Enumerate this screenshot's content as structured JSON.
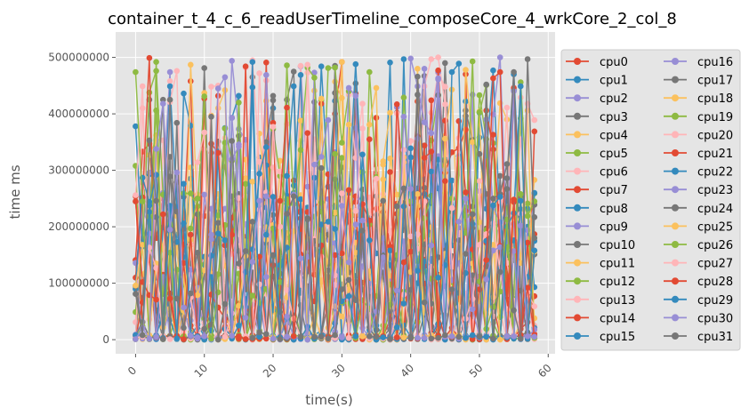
{
  "chart_data": {
    "type": "line",
    "title": "container_t_4_c_6_readUserTimeline_composeCore_4_wrkCore_2_col_8",
    "xlabel": "time(s)",
    "ylabel": "time ms",
    "xlim": [
      -2.9,
      61.0
    ],
    "ylim": [
      -25000000,
      545000000
    ],
    "xticks": [
      0,
      10,
      20,
      30,
      40,
      50,
      60
    ],
    "yticks": [
      0,
      100000000,
      200000000,
      300000000,
      400000000,
      500000000
    ],
    "xtick_labels": [
      "0",
      "10",
      "20",
      "30",
      "40",
      "50",
      "60"
    ],
    "ytick_labels": [
      "0",
      "100000000",
      "200000000",
      "300000000",
      "400000000",
      "500000000"
    ],
    "grid": true,
    "legend_position": "right-outside",
    "legend_columns": 2,
    "x_range": [
      0,
      58
    ],
    "colors": [
      "#E24A33",
      "#348ABD",
      "#988ED5",
      "#777777",
      "#FBC15E",
      "#8EBA42",
      "#FFB5B8"
    ],
    "series": [
      {
        "name": "cpu0",
        "color": "#E24A33"
      },
      {
        "name": "cpu1",
        "color": "#348ABD"
      },
      {
        "name": "cpu2",
        "color": "#988ED5"
      },
      {
        "name": "cpu3",
        "color": "#777777"
      },
      {
        "name": "cpu4",
        "color": "#FBC15E"
      },
      {
        "name": "cpu5",
        "color": "#8EBA42"
      },
      {
        "name": "cpu6",
        "color": "#FFB5B8"
      },
      {
        "name": "cpu7",
        "color": "#E24A33"
      },
      {
        "name": "cpu8",
        "color": "#348ABD"
      },
      {
        "name": "cpu9",
        "color": "#988ED5"
      },
      {
        "name": "cpu10",
        "color": "#777777"
      },
      {
        "name": "cpu11",
        "color": "#FBC15E"
      },
      {
        "name": "cpu12",
        "color": "#8EBA42"
      },
      {
        "name": "cpu13",
        "color": "#FFB5B8"
      },
      {
        "name": "cpu14",
        "color": "#E24A33"
      },
      {
        "name": "cpu15",
        "color": "#348ABD"
      },
      {
        "name": "cpu16",
        "color": "#988ED5"
      },
      {
        "name": "cpu17",
        "color": "#777777"
      },
      {
        "name": "cpu18",
        "color": "#FBC15E"
      },
      {
        "name": "cpu19",
        "color": "#8EBA42"
      },
      {
        "name": "cpu20",
        "color": "#FFB5B8"
      },
      {
        "name": "cpu21",
        "color": "#E24A33"
      },
      {
        "name": "cpu22",
        "color": "#348ABD"
      },
      {
        "name": "cpu23",
        "color": "#988ED5"
      },
      {
        "name": "cpu24",
        "color": "#777777"
      },
      {
        "name": "cpu25",
        "color": "#FBC15E"
      },
      {
        "name": "cpu26",
        "color": "#8EBA42"
      },
      {
        "name": "cpu27",
        "color": "#FFB5B8"
      },
      {
        "name": "cpu28",
        "color": "#E24A33"
      },
      {
        "name": "cpu29",
        "color": "#348ABD"
      },
      {
        "name": "cpu30",
        "color": "#988ED5"
      },
      {
        "name": "cpu31",
        "color": "#777777"
      }
    ]
  }
}
